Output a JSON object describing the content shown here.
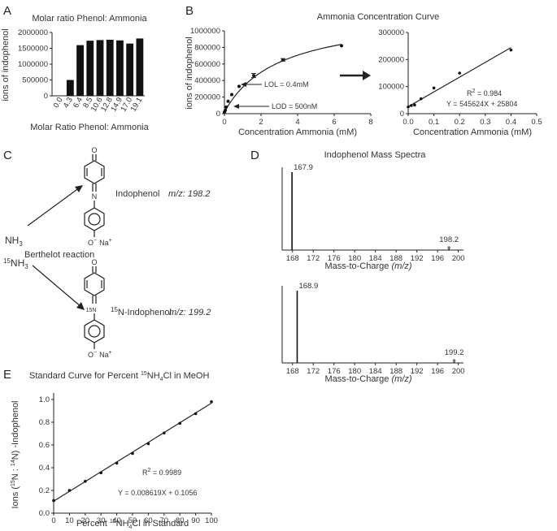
{
  "panels": {
    "A": {
      "letter": "A",
      "chart_data": {
        "type": "bar",
        "title": "Molar ratio Phenol: Ammonia",
        "xlabel": "Molar Ratio Phenol: Ammonia",
        "ylabel": "ions of indophenol",
        "categories": [
          "0.0",
          "4.3",
          "6.4",
          "8.5",
          "10.6",
          "12.8",
          "14.9",
          "17.0",
          "19.1"
        ],
        "values": [
          0,
          500000,
          1600000,
          1740000,
          1760000,
          1770000,
          1750000,
          1650000,
          1810000
        ],
        "ylim": [
          0,
          2000000
        ],
        "yticks": [
          "0",
          "500000",
          "1000000",
          "1500000",
          "2000000"
        ],
        "ytick_values": [
          0,
          500000,
          1000000,
          1500000,
          2000000
        ]
      }
    },
    "B": {
      "letter": "B",
      "title": "Ammonia Concentration Curve",
      "left": {
        "chart_data": {
          "type": "scatter",
          "xlabel": "Concentration Ammonia (mM)",
          "ylabel": "ions of indophenol",
          "xlim": [
            0,
            8
          ],
          "ylim": [
            0,
            1000000
          ],
          "xticks": [
            "0",
            "2",
            "4",
            "6",
            "8"
          ],
          "xtick_values": [
            0,
            2,
            4,
            6,
            8
          ],
          "yticks": [
            "0",
            "200000",
            "400000",
            "600000",
            "800000",
            "1000000"
          ],
          "ytick_values": [
            0,
            200000,
            400000,
            600000,
            800000,
            1000000
          ],
          "x": [
            0.0,
            0.05,
            0.1,
            0.2,
            0.4,
            0.8,
            1.6,
            3.2,
            6.4
          ],
          "y": [
            20000,
            40000,
            80000,
            150000,
            230000,
            330000,
            460000,
            650000,
            820000
          ],
          "errors": [
            0,
            0,
            0,
            0,
            0,
            0,
            25000,
            15000,
            0
          ]
        },
        "annotations": [
          "LOL = 0.4mM",
          "LOD = 500nM"
        ]
      },
      "right": {
        "chart_data": {
          "type": "scatter",
          "xlabel": "Concentration Ammonia (mM)",
          "xlim": [
            0,
            0.5
          ],
          "ylim": [
            0,
            300000
          ],
          "xticks": [
            "0.0",
            "0.1",
            "0.2",
            "0.3",
            "0.4",
            "0.5"
          ],
          "xtick_values": [
            0,
            0.1,
            0.2,
            0.3,
            0.4,
            0.5
          ],
          "yticks": [
            "0",
            "100000",
            "200000",
            "300000"
          ],
          "ytick_values": [
            0,
            100000,
            200000,
            300000
          ],
          "x": [
            0.0,
            0.012,
            0.025,
            0.05,
            0.1,
            0.2,
            0.4
          ],
          "y": [
            25000,
            30000,
            32000,
            55000,
            95000,
            150000,
            235000
          ],
          "fit": {
            "slope": 545624,
            "intercept": 25804
          }
        },
        "r2_prefix": "R",
        "r2_exp": "2",
        "r2_value": " = 0.984",
        "equation": "Y = 545624X + 25804"
      }
    },
    "C": {
      "letter": "C",
      "reactant1_base": "NH",
      "reactant1_sub": "3",
      "reactant2_sup": "15",
      "reactant2_base": "NH",
      "reactant2_sub": "3",
      "reaction_label": "Berthelot reaction",
      "product1_name": "Indophenol",
      "product1_mz": "m/z: 198.2",
      "product2_sup": "15",
      "product2_name": "N-Indophenol",
      "product2_mz": "m/z: 199.2",
      "atom_O": "O",
      "atom_N": "N",
      "atom_15N": "15N",
      "atom_Ominus": "O",
      "minus": "−",
      "atom_Na": "Na",
      "plus": "+"
    },
    "D": {
      "letter": "D",
      "title": "Indophenol Mass Spectra",
      "xticks": [
        "168",
        "172",
        "176",
        "180",
        "184",
        "188",
        "192",
        "196",
        "200"
      ],
      "xtick_values": [
        168,
        172,
        176,
        180,
        184,
        188,
        192,
        196,
        200
      ],
      "xlabel_main": "Mass-to-Charge ",
      "xlabel_italic": "(m/z)",
      "top": {
        "chart_data": {
          "type": "bar",
          "xlim": [
            166,
            201
          ],
          "x": [
            167.9,
            198.2
          ],
          "values": [
            1.0,
            0.02
          ]
        },
        "peak_labels": [
          "167.9",
          "198.2"
        ]
      },
      "bottom": {
        "chart_data": {
          "type": "bar",
          "xlim": [
            166,
            201
          ],
          "x": [
            168.9,
            199.2
          ],
          "values": [
            1.0,
            0.02
          ]
        },
        "peak_labels": [
          "168.9",
          "199.2"
        ]
      }
    },
    "E": {
      "letter": "E",
      "title_pre": "Standard Curve for Percent ",
      "title_sup": "15",
      "title_mid": "NH",
      "title_sub": "4",
      "title_post": "Cl in MeOH",
      "ylabel_pre": "Ions (",
      "ylabel_sup1": "15",
      "ylabel_mid": "N : ",
      "ylabel_sup2": "14",
      "ylabel_post": "N) -Indophenol",
      "xlabel_pre": "Percent ",
      "xlabel_sup": "15",
      "xlabel_mid": "NH",
      "xlabel_sub": "4",
      "xlabel_post": "Cl in Standard",
      "r2_prefix": "R",
      "r2_exp": "2",
      "r2_value": " = 0.9989",
      "equation": "Y = 0.008619X + 0.1056",
      "chart_data": {
        "type": "scatter",
        "xlim": [
          0,
          100
        ],
        "ylim": [
          0,
          1.0
        ],
        "xticks": [
          "0",
          "10",
          "20",
          "30",
          "40",
          "50",
          "60",
          "70",
          "80",
          "90",
          "100"
        ],
        "xtick_values": [
          0,
          10,
          20,
          30,
          40,
          50,
          60,
          70,
          80,
          90,
          100
        ],
        "yticks": [
          "0.0",
          "0.2",
          "0.4",
          "0.6",
          "0.8",
          "1.0"
        ],
        "ytick_values": [
          0,
          0.2,
          0.4,
          0.6,
          0.8,
          1.0
        ],
        "x": [
          0,
          10,
          20,
          30,
          40,
          50,
          60,
          70,
          80,
          90,
          100
        ],
        "y": [
          0.11,
          0.2,
          0.28,
          0.355,
          0.44,
          0.525,
          0.61,
          0.705,
          0.79,
          0.875,
          0.98
        ],
        "fit": {
          "slope": 0.008619,
          "intercept": 0.1056
        }
      }
    }
  }
}
